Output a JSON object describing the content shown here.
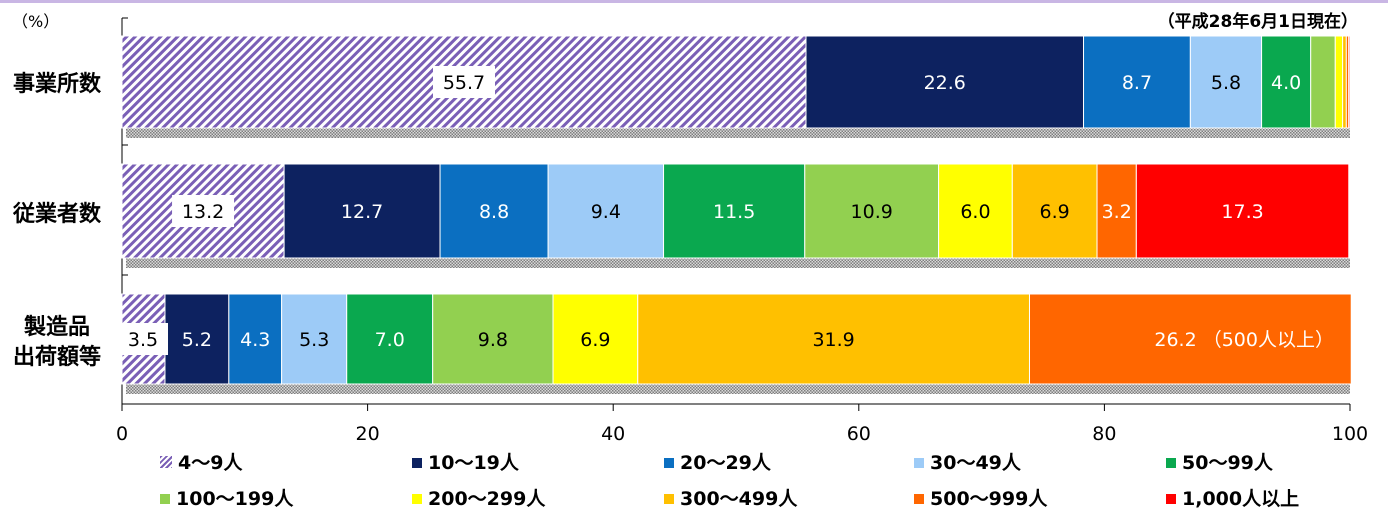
{
  "unit_label": "（%）",
  "date_note": "（平成28年6月1日現在）",
  "chart_data": {
    "type": "bar",
    "orientation": "horizontal",
    "stacked": true,
    "xlim": [
      0,
      100
    ],
    "xticks": [
      0,
      20,
      40,
      60,
      80,
      100
    ],
    "legend_position": "bottom",
    "categories": [
      "事業所数",
      "従業者数",
      "製造品出荷額等"
    ],
    "category_display": [
      [
        "事業所数"
      ],
      [
        "従業者数"
      ],
      [
        "製造品",
        "出荷額等"
      ]
    ],
    "series": [
      {
        "name": "4〜9人",
        "color": "#7a5fb6",
        "hatch": true,
        "values": [
          55.7,
          13.2,
          3.5
        ]
      },
      {
        "name": "10〜19人",
        "color": "#0d2260",
        "values": [
          22.6,
          12.7,
          5.2
        ]
      },
      {
        "name": "20〜29人",
        "color": "#0b6fc1",
        "values": [
          8.7,
          8.8,
          4.3
        ]
      },
      {
        "name": "30〜49人",
        "color": "#9dcbf7",
        "values": [
          5.8,
          9.4,
          5.3
        ]
      },
      {
        "name": "50〜99人",
        "color": "#0aa84f",
        "values": [
          4.0,
          11.5,
          7.0
        ]
      },
      {
        "name": "100〜199人",
        "color": "#92d050",
        "values": [
          2.0,
          10.9,
          9.8
        ]
      },
      {
        "name": "200〜299人",
        "color": "#ffff00",
        "values": [
          0.6,
          6.0,
          6.9
        ]
      },
      {
        "name": "300〜499人",
        "color": "#ffc000",
        "values": [
          0.3,
          6.9,
          31.9
        ]
      },
      {
        "name": "500〜999人",
        "color": "#ff6600",
        "values": [
          0.2,
          3.2,
          26.2
        ]
      },
      {
        "name": "1,000人以上",
        "color": "#ff0000",
        "values": [
          0.1,
          17.3,
          0
        ]
      }
    ],
    "data_labels": [
      [
        "55.7",
        "22.6",
        "8.7",
        "5.8",
        "4.0",
        "",
        "",
        "",
        "",
        ""
      ],
      [
        "13.2",
        "12.7",
        "8.8",
        "9.4",
        "11.5",
        "10.9",
        "6.0",
        "6.9",
        "3.2",
        "17.3"
      ],
      [
        "3.5",
        "5.2",
        "4.3",
        "5.3",
        "7.0",
        "9.8",
        "6.9",
        "31.9",
        "26.2 （500人以上）",
        ""
      ]
    ]
  }
}
